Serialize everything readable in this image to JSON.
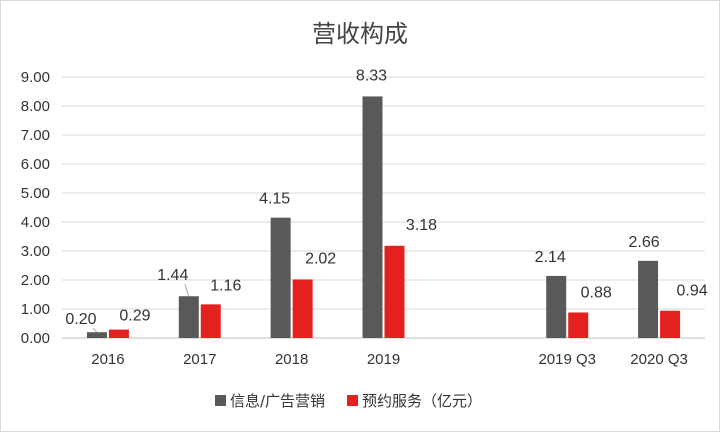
{
  "chart_data": {
    "type": "bar",
    "title": "营收构成",
    "categories": [
      "2016",
      "2017",
      "2018",
      "2019",
      "",
      "2019 Q3",
      "2020 Q3"
    ],
    "series": [
      {
        "name": "信息/广告营销",
        "color": "#595959",
        "values": [
          0.2,
          1.44,
          4.15,
          8.33,
          null,
          2.14,
          2.66
        ]
      },
      {
        "name": "预约服务（亿元）",
        "color": "#e3211e",
        "values": [
          0.29,
          1.16,
          2.02,
          3.18,
          null,
          0.88,
          0.94
        ]
      }
    ],
    "data_labels": [
      [
        "0.20",
        "1.44",
        "4.15",
        "8.33",
        "",
        "2.14",
        "2.66"
      ],
      [
        "0.29",
        "1.16",
        "2.02",
        "3.18",
        "",
        "0.88",
        "0.94"
      ]
    ],
    "y_ticks": [
      "0.00",
      "1.00",
      "2.00",
      "3.00",
      "4.00",
      "5.00",
      "6.00",
      "7.00",
      "8.00",
      "9.00"
    ],
    "ylim": [
      0,
      9
    ],
    "grid": true,
    "legend_position": "bottom"
  }
}
